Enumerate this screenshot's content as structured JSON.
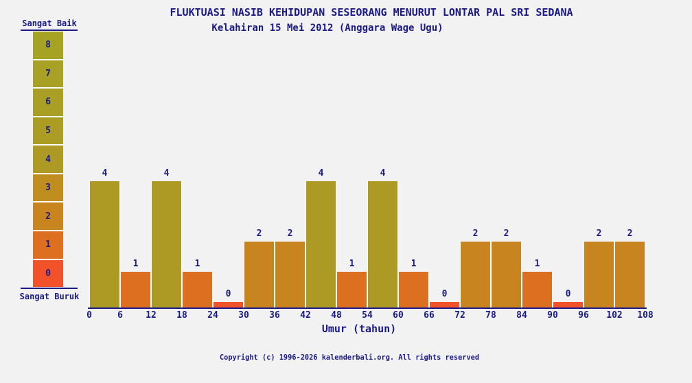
{
  "page": {
    "background_color": "#f2f2f2",
    "text_color": "#191988"
  },
  "chart_data": {
    "type": "bar",
    "title": "FLUKTUASI NASIB KEHIDUPAN SESEORANG MENURUT LONTAR PAL SRI SEDANA",
    "subtitle": "Kelahiran 15 Mei 2012 (Anggara Wage Ugu)",
    "xlabel": "Umur (tahun)",
    "ylabel": "",
    "grid": false,
    "legend_position": "left",
    "ylim": [
      0,
      8
    ],
    "xlim": [
      0,
      108
    ],
    "years_per_bar": 6,
    "x_ticks": [
      0,
      6,
      12,
      18,
      24,
      30,
      36,
      42,
      48,
      54,
      60,
      66,
      72,
      78,
      84,
      90,
      96,
      102,
      108
    ],
    "values": [
      4,
      1,
      4,
      1,
      0,
      2,
      2,
      4,
      1,
      4,
      1,
      0,
      2,
      2,
      1,
      0,
      2,
      2
    ],
    "bars": [
      {
        "age_from": 0,
        "age_to": 6,
        "value": 4
      },
      {
        "age_from": 6,
        "age_to": 12,
        "value": 1
      },
      {
        "age_from": 12,
        "age_to": 18,
        "value": 4
      },
      {
        "age_from": 18,
        "age_to": 24,
        "value": 1
      },
      {
        "age_from": 24,
        "age_to": 30,
        "value": 0
      },
      {
        "age_from": 30,
        "age_to": 36,
        "value": 2
      },
      {
        "age_from": 36,
        "age_to": 42,
        "value": 2
      },
      {
        "age_from": 42,
        "age_to": 48,
        "value": 4
      },
      {
        "age_from": 48,
        "age_to": 54,
        "value": 1
      },
      {
        "age_from": 54,
        "age_to": 60,
        "value": 4
      },
      {
        "age_from": 60,
        "age_to": 66,
        "value": 1
      },
      {
        "age_from": 66,
        "age_to": 72,
        "value": 0
      },
      {
        "age_from": 72,
        "age_to": 78,
        "value": 2
      },
      {
        "age_from": 78,
        "age_to": 84,
        "value": 2
      },
      {
        "age_from": 84,
        "age_to": 90,
        "value": 1
      },
      {
        "age_from": 90,
        "age_to": 96,
        "value": 0
      },
      {
        "age_from": 96,
        "age_to": 102,
        "value": 2
      },
      {
        "age_from": 102,
        "age_to": 108,
        "value": 2
      }
    ],
    "legend": {
      "top_label": "Sangat Baik",
      "bottom_label": "Sangat Buruk",
      "levels": [
        8,
        7,
        6,
        5,
        4,
        3,
        2,
        1,
        0
      ]
    },
    "level_colors": {
      "8": "#a6a324",
      "7": "#a8a125",
      "6": "#aa9f25",
      "5": "#ab9d24",
      "4": "#ac9a24",
      "3": "#bf8e1e",
      "2": "#c8841e",
      "1": "#dc7020",
      "0": "#f2522a"
    }
  },
  "footer": {
    "copyright": "Copyright (c) 1996-2026 kalenderbali.org. All rights reserved"
  }
}
